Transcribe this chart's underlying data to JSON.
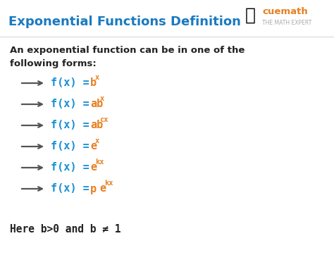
{
  "title": "Exponential Functions Definition",
  "title_color": "#1a7abf",
  "title_fontsize": 13,
  "bg_color": "#ffffff",
  "intro_line1": "An exponential function can be in one of the",
  "intro_line2": "following forms:",
  "intro_color": "#222222",
  "intro_fontsize": 9.5,
  "arrow_color": "#555555",
  "blue_color": "#1a90d4",
  "orange_color": "#e88020",
  "footer_text": "Here b>0 and b ≠ 1",
  "footer_fontsize": 10.5,
  "footer_color": "#222222",
  "cuemath_color": "#e88020",
  "cuemath_blue": "#29b6f6",
  "cuemath_text": "cuemath",
  "cuemath_sub": "THE MATH EXPERT"
}
